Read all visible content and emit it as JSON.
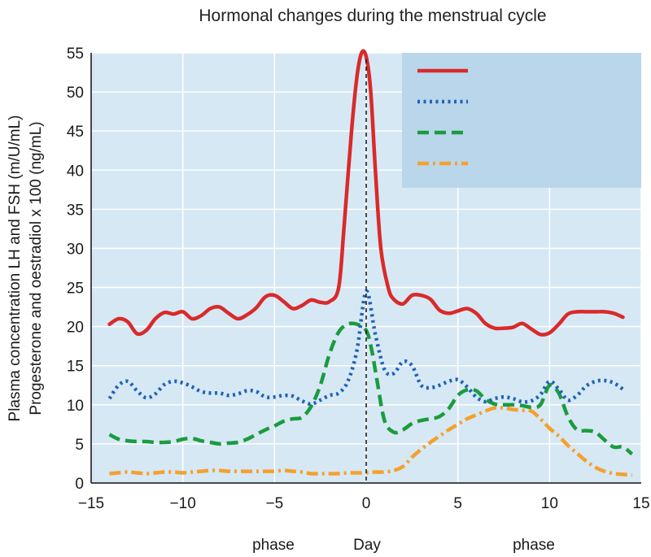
{
  "chart_data": {
    "type": "line",
    "title": "Hormonal changes during the menstrual cycle",
    "ylabel_lines": [
      "Plasma concentration LH and FSH (m/U/mL)",
      "Progesterone and oestradiol x 100 (ng/mL)"
    ],
    "xlabel": "Day",
    "phase_labels": [
      "phase",
      "phase"
    ],
    "xlim": [
      -15,
      15
    ],
    "ylim": [
      0,
      55
    ],
    "x_ticks": [
      -15,
      -10,
      -5,
      0,
      5,
      10,
      15
    ],
    "x_tick_labels": [
      "−15",
      "−10",
      "−5",
      "0",
      "5",
      "10",
      "15"
    ],
    "y_ticks": [
      0,
      5,
      10,
      15,
      20,
      25,
      30,
      35,
      40,
      45,
      50,
      55
    ],
    "grid": true,
    "legend_position": "top-right",
    "marker_x": 0,
    "series": [
      {
        "color": "#d92a2a",
        "dash": "solid",
        "x": [
          -14,
          -13.5,
          -13,
          -12.5,
          -12,
          -11.5,
          -11,
          -10.5,
          -10,
          -9.5,
          -9,
          -8.5,
          -8,
          -7.5,
          -7,
          -6.5,
          -6,
          -5.5,
          -5,
          -4.5,
          -4,
          -3.5,
          -3,
          -2.5,
          -2,
          -1.5,
          -1.2,
          -0.8,
          -0.5,
          -0.25,
          0,
          0.25,
          0.5,
          0.8,
          1.2,
          1.5,
          2,
          2.5,
          3,
          3.5,
          4,
          4.5,
          5,
          5.5,
          6,
          6.5,
          7,
          7.5,
          8,
          8.5,
          9,
          9.5,
          10,
          10.5,
          11,
          11.5,
          12,
          12.5,
          13,
          13.5,
          14
        ],
        "y": [
          20.3,
          21.0,
          20.6,
          19.1,
          19.5,
          21.0,
          21.8,
          21.6,
          21.9,
          21.0,
          21.4,
          22.3,
          22.5,
          21.7,
          21.0,
          21.5,
          22.4,
          23.8,
          24.0,
          23.2,
          22.3,
          22.7,
          23.4,
          23.1,
          23.2,
          25.0,
          33.0,
          45.0,
          52.0,
          55.0,
          54.5,
          50.0,
          40.0,
          30.0,
          25.0,
          23.5,
          22.9,
          24.0,
          24.0,
          23.5,
          22.1,
          21.7,
          22.0,
          22.3,
          21.7,
          20.4,
          19.8,
          19.8,
          19.9,
          20.4,
          19.7,
          19.0,
          19.2,
          20.3,
          21.6,
          21.9,
          21.9,
          21.9,
          21.9,
          21.7,
          21.2
        ]
      },
      {
        "color": "#1f63b6",
        "dash": "dotted",
        "x": [
          -14,
          -13.5,
          -13,
          -12.5,
          -12,
          -11.5,
          -11,
          -10.5,
          -10,
          -9.5,
          -9,
          -8.5,
          -8,
          -7.5,
          -7,
          -6.5,
          -6,
          -5.5,
          -5,
          -4.5,
          -4,
          -3.5,
          -3,
          -2.5,
          -2,
          -1.5,
          -1,
          -0.5,
          0,
          0.5,
          1,
          1.5,
          2,
          2.5,
          3,
          3.5,
          4,
          4.5,
          5,
          5.5,
          6,
          6.5,
          7,
          7.5,
          8,
          8.5,
          9,
          9.5,
          10,
          10.5,
          11,
          11.5,
          12,
          12.5,
          13,
          13.5,
          14
        ],
        "y": [
          10.8,
          12.5,
          13.0,
          11.8,
          10.9,
          11.4,
          12.6,
          13.0,
          12.8,
          12.3,
          11.7,
          11.5,
          11.5,
          11.2,
          11.4,
          11.8,
          11.7,
          11.0,
          11.0,
          11.2,
          11.1,
          10.5,
          10.1,
          10.6,
          11.2,
          11.5,
          13.0,
          17.0,
          24.5,
          19.0,
          14.5,
          14.0,
          15.5,
          15.0,
          12.5,
          12.2,
          12.5,
          13.0,
          13.2,
          12.3,
          11.0,
          10.4,
          10.8,
          11.0,
          10.8,
          10.4,
          10.5,
          11.3,
          13.0,
          12.0,
          10.6,
          11.2,
          12.4,
          13.0,
          13.1,
          12.8,
          12.0
        ]
      },
      {
        "color": "#1a9c3e",
        "dash": "dashed",
        "x": [
          -14,
          -13.5,
          -13,
          -12.5,
          -12,
          -11.5,
          -11,
          -10.5,
          -10,
          -9.5,
          -9,
          -8.5,
          -8,
          -7.5,
          -7,
          -6.5,
          -6,
          -5.5,
          -5,
          -4.5,
          -4,
          -3.5,
          -3,
          -2.5,
          -2,
          -1.5,
          -1,
          -0.5,
          0,
          0.3,
          0.6,
          1,
          1.5,
          2,
          2.5,
          3,
          3.5,
          4,
          4.5,
          5,
          5.5,
          6,
          6.5,
          7,
          7.5,
          8,
          8.5,
          9,
          9.5,
          10,
          10.5,
          11,
          11.5,
          12,
          12.5,
          13,
          13.5,
          14,
          14.5
        ],
        "y": [
          6.2,
          5.6,
          5.4,
          5.3,
          5.3,
          5.2,
          5.2,
          5.3,
          5.6,
          5.7,
          5.4,
          5.2,
          5.0,
          5.1,
          5.2,
          5.6,
          6.2,
          6.8,
          7.3,
          7.9,
          8.2,
          8.4,
          9.8,
          12.5,
          16.5,
          19.3,
          20.3,
          20.3,
          19.5,
          17.0,
          13.0,
          8.0,
          6.5,
          6.8,
          7.6,
          8.0,
          8.2,
          8.5,
          9.5,
          11.2,
          11.9,
          11.8,
          10.7,
          10.1,
          10.0,
          10.0,
          9.9,
          9.7,
          10.0,
          12.5,
          11.5,
          8.5,
          6.8,
          6.7,
          6.5,
          5.5,
          4.6,
          4.6,
          3.7
        ]
      },
      {
        "color": "#f5a02f",
        "dash": "dashdot",
        "x": [
          -14,
          -13.5,
          -13,
          -12.5,
          -12,
          -11.5,
          -11,
          -10.5,
          -10,
          -9.5,
          -9,
          -8.5,
          -8,
          -7.5,
          -7,
          -6.5,
          -6,
          -5.5,
          -5,
          -4.5,
          -4,
          -3.5,
          -3,
          -2.5,
          -2,
          -1.5,
          -1,
          -0.5,
          0,
          0.5,
          1,
          1.5,
          2,
          2.5,
          3,
          3.5,
          4,
          4.5,
          5,
          5.5,
          6,
          6.5,
          7,
          7.5,
          8,
          8.5,
          9,
          9.5,
          10,
          10.5,
          11,
          11.5,
          12,
          12.5,
          13,
          13.5,
          14,
          14.5
        ],
        "y": [
          1.2,
          1.3,
          1.4,
          1.3,
          1.2,
          1.3,
          1.4,
          1.4,
          1.3,
          1.4,
          1.5,
          1.6,
          1.6,
          1.5,
          1.5,
          1.5,
          1.5,
          1.5,
          1.5,
          1.6,
          1.5,
          1.4,
          1.2,
          1.2,
          1.2,
          1.2,
          1.3,
          1.3,
          1.3,
          1.4,
          1.4,
          1.6,
          2.1,
          3.3,
          4.3,
          5.2,
          6.0,
          6.8,
          7.5,
          8.2,
          8.7,
          9.2,
          9.6,
          9.6,
          9.4,
          9.3,
          9.2,
          8.2,
          7.0,
          6.0,
          4.8,
          3.8,
          2.8,
          2.0,
          1.5,
          1.2,
          1.1,
          1.0
        ]
      }
    ]
  }
}
